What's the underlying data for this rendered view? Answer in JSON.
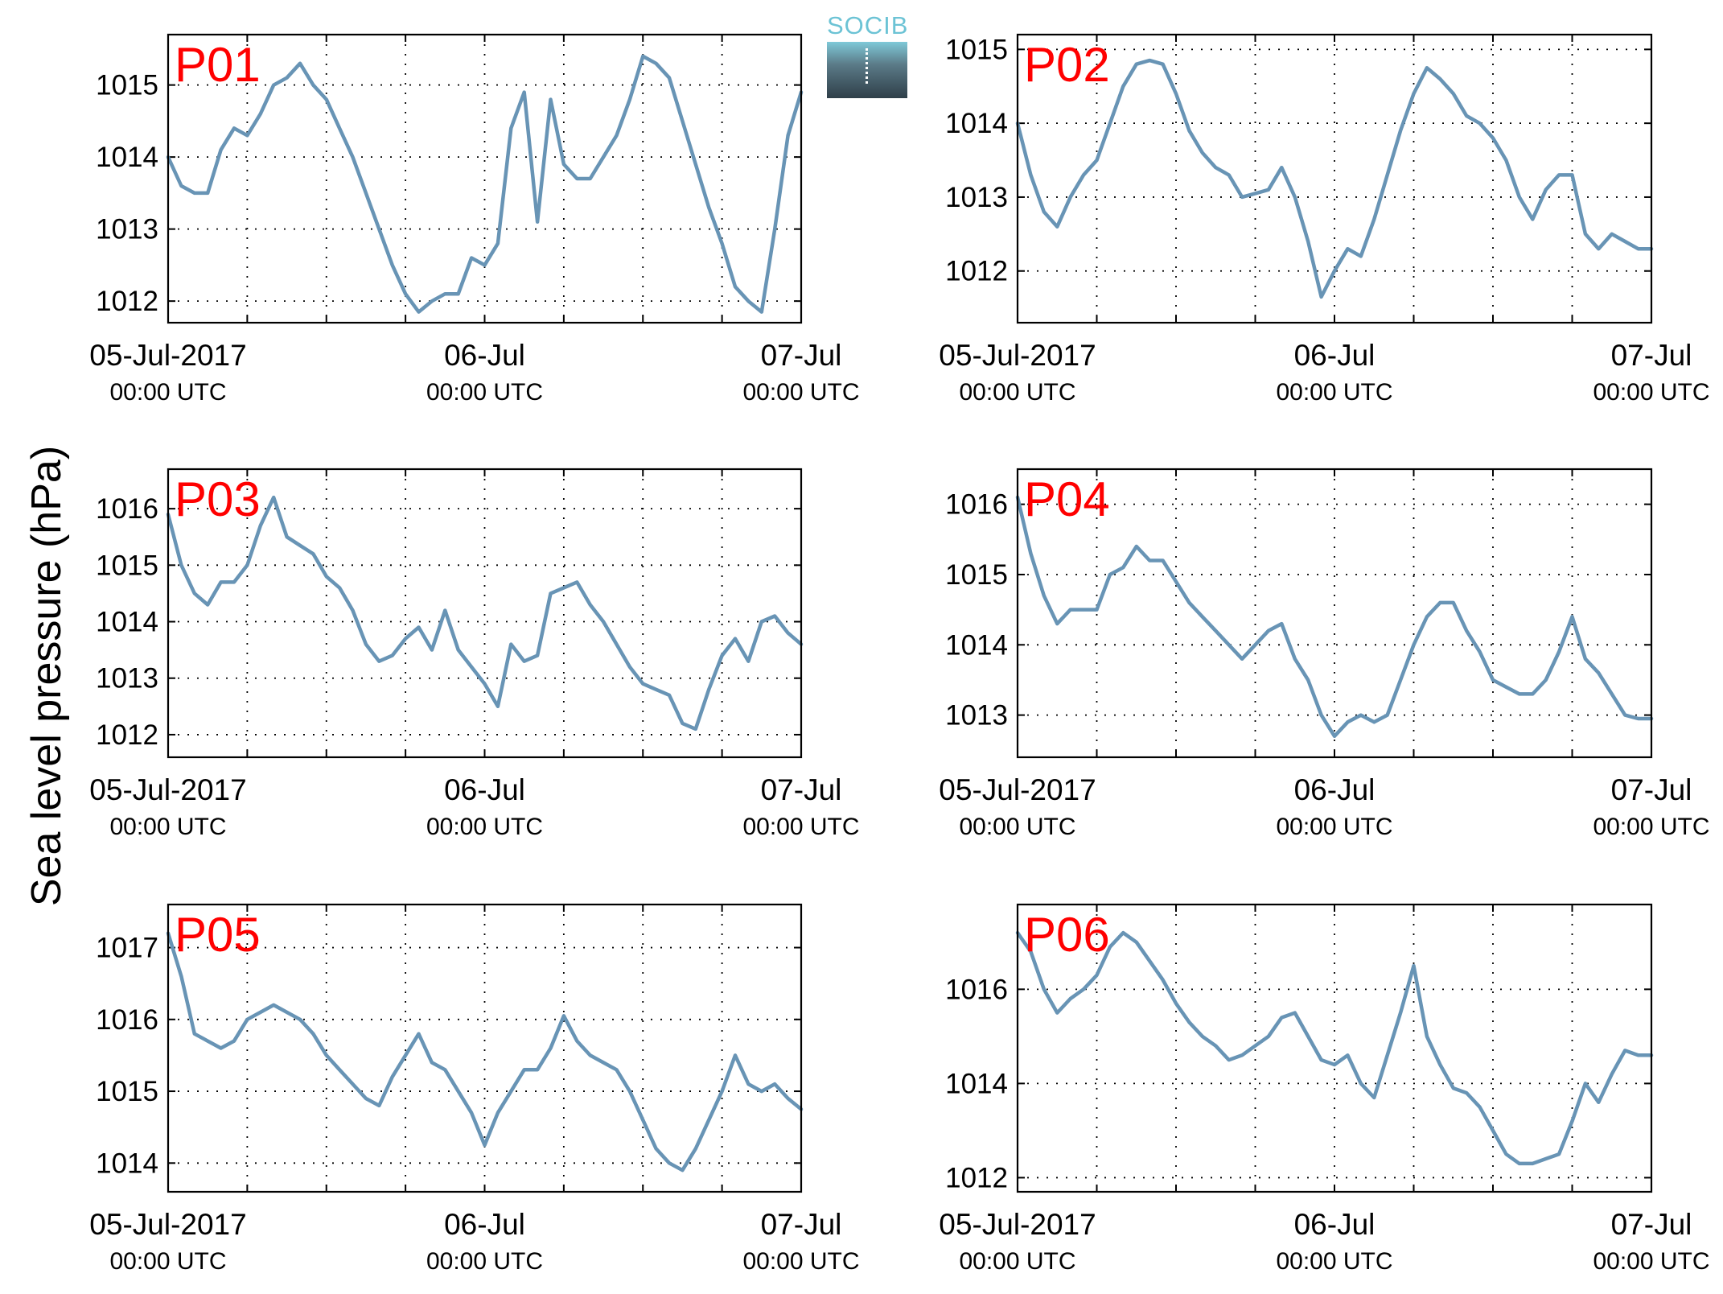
{
  "figure": {
    "ylabel": "Sea level pressure (hPa)",
    "logo_text": "SOCIB"
  },
  "colors": {
    "line": "#6894b5",
    "panel_label": "#ff0000",
    "grid": "#000000",
    "axis": "#000000"
  },
  "chart_data": [
    {
      "type": "line",
      "panel_label": "P01",
      "x_range": [
        "2017-07-05 00:00",
        "2017-07-07 00:00"
      ],
      "x_ticks": [
        {
          "date": "05-Jul-2017",
          "time": "00:00 UTC"
        },
        {
          "date": "06-Jul",
          "time": "00:00 UTC"
        },
        {
          "date": "07-Jul",
          "time": "00:00 UTC"
        }
      ],
      "y_ticks": [
        1012,
        1013,
        1014,
        1015
      ],
      "ylim": [
        1011.7,
        1015.7
      ],
      "grid": true,
      "series": [
        {
          "x_hours": [
            0,
            1,
            2,
            3,
            4,
            5,
            6,
            7,
            8,
            9,
            10,
            11,
            12,
            13,
            14,
            15,
            16,
            17,
            18,
            19,
            20,
            21,
            22,
            23,
            24,
            25,
            26,
            27,
            28,
            29,
            30,
            31,
            32,
            33,
            34,
            35,
            36,
            37,
            38,
            39,
            40,
            41,
            42,
            43,
            44,
            45,
            46,
            47,
            48
          ],
          "values": [
            1014.0,
            1013.6,
            1013.5,
            1013.5,
            1014.1,
            1014.4,
            1014.3,
            1014.6,
            1015.0,
            1015.1,
            1015.3,
            1015.0,
            1014.8,
            1014.4,
            1014.0,
            1013.5,
            1013.0,
            1012.5,
            1012.1,
            1011.85,
            1012.0,
            1012.1,
            1012.1,
            1012.6,
            1012.5,
            1012.8,
            1014.4,
            1014.9,
            1013.1,
            1014.8,
            1013.9,
            1013.7,
            1013.7,
            1014.0,
            1014.3,
            1014.8,
            1015.4,
            1015.3,
            1015.1,
            1014.5,
            1013.9,
            1013.3,
            1012.8,
            1012.2,
            1012.0,
            1011.85,
            1013.0,
            1014.3,
            1014.9
          ]
        }
      ]
    },
    {
      "type": "line",
      "panel_label": "P02",
      "x_range": [
        "2017-07-05 00:00",
        "2017-07-07 00:00"
      ],
      "x_ticks": [
        {
          "date": "05-Jul-2017",
          "time": "00:00 UTC"
        },
        {
          "date": "06-Jul",
          "time": "00:00 UTC"
        },
        {
          "date": "07-Jul",
          "time": "00:00 UTC"
        }
      ],
      "y_ticks": [
        1012,
        1013,
        1014,
        1015
      ],
      "ylim": [
        1011.3,
        1015.2
      ],
      "grid": true,
      "series": [
        {
          "x_hours": [
            0,
            1,
            2,
            3,
            4,
            5,
            6,
            7,
            8,
            9,
            10,
            11,
            12,
            13,
            14,
            15,
            16,
            17,
            18,
            19,
            20,
            21,
            22,
            23,
            24,
            25,
            26,
            27,
            28,
            29,
            30,
            31,
            32,
            33,
            34,
            35,
            36,
            37,
            38,
            39,
            40,
            41,
            42,
            43,
            44,
            45,
            46,
            47,
            48
          ],
          "values": [
            1014.0,
            1013.3,
            1012.8,
            1012.6,
            1013.0,
            1013.3,
            1013.5,
            1014.0,
            1014.5,
            1014.8,
            1014.85,
            1014.8,
            1014.4,
            1013.9,
            1013.6,
            1013.4,
            1013.3,
            1013.0,
            1013.05,
            1013.1,
            1013.4,
            1013.0,
            1012.4,
            1011.65,
            1012.0,
            1012.3,
            1012.2,
            1012.7,
            1013.3,
            1013.9,
            1014.4,
            1014.75,
            1014.6,
            1014.4,
            1014.1,
            1014.0,
            1013.8,
            1013.5,
            1013.0,
            1012.7,
            1013.1,
            1013.3,
            1013.3,
            1012.5,
            1012.3,
            1012.5,
            1012.4,
            1012.3,
            1012.3
          ]
        }
      ]
    },
    {
      "type": "line",
      "panel_label": "P03",
      "x_range": [
        "2017-07-05 00:00",
        "2017-07-07 00:00"
      ],
      "x_ticks": [
        {
          "date": "05-Jul-2017",
          "time": "00:00 UTC"
        },
        {
          "date": "06-Jul",
          "time": "00:00 UTC"
        },
        {
          "date": "07-Jul",
          "time": "00:00 UTC"
        }
      ],
      "y_ticks": [
        1012,
        1013,
        1014,
        1015,
        1016
      ],
      "ylim": [
        1011.6,
        1016.7
      ],
      "grid": true,
      "series": [
        {
          "x_hours": [
            0,
            1,
            2,
            3,
            4,
            5,
            6,
            7,
            8,
            9,
            10,
            11,
            12,
            13,
            14,
            15,
            16,
            17,
            18,
            19,
            20,
            21,
            22,
            23,
            24,
            25,
            26,
            27,
            28,
            29,
            30,
            31,
            32,
            33,
            34,
            35,
            36,
            37,
            38,
            39,
            40,
            41,
            42,
            43,
            44,
            45,
            46,
            47,
            48
          ],
          "values": [
            1015.9,
            1015.0,
            1014.5,
            1014.3,
            1014.7,
            1014.7,
            1015.0,
            1015.7,
            1016.2,
            1015.5,
            1015.35,
            1015.2,
            1014.8,
            1014.6,
            1014.2,
            1013.6,
            1013.3,
            1013.4,
            1013.7,
            1013.9,
            1013.5,
            1014.2,
            1013.5,
            1013.2,
            1012.9,
            1012.5,
            1013.6,
            1013.3,
            1013.4,
            1014.5,
            1014.6,
            1014.7,
            1014.3,
            1014.0,
            1013.6,
            1013.2,
            1012.9,
            1012.8,
            1012.7,
            1012.2,
            1012.1,
            1012.8,
            1013.4,
            1013.7,
            1013.3,
            1014.0,
            1014.1,
            1013.8,
            1013.6
          ]
        }
      ]
    },
    {
      "type": "line",
      "panel_label": "P04",
      "x_range": [
        "2017-07-05 00:00",
        "2017-07-07 00:00"
      ],
      "x_ticks": [
        {
          "date": "05-Jul-2017",
          "time": "00:00 UTC"
        },
        {
          "date": "06-Jul",
          "time": "00:00 UTC"
        },
        {
          "date": "07-Jul",
          "time": "00:00 UTC"
        }
      ],
      "y_ticks": [
        1013,
        1014,
        1015,
        1016
      ],
      "ylim": [
        1012.4,
        1016.5
      ],
      "grid": true,
      "series": [
        {
          "x_hours": [
            0,
            1,
            2,
            3,
            4,
            5,
            6,
            7,
            8,
            9,
            10,
            11,
            12,
            13,
            14,
            15,
            16,
            17,
            18,
            19,
            20,
            21,
            22,
            23,
            24,
            25,
            26,
            27,
            28,
            29,
            30,
            31,
            32,
            33,
            34,
            35,
            36,
            37,
            38,
            39,
            40,
            41,
            42,
            43,
            44,
            45,
            46,
            47,
            48
          ],
          "values": [
            1016.1,
            1015.3,
            1014.7,
            1014.3,
            1014.5,
            1014.5,
            1014.5,
            1015.0,
            1015.1,
            1015.4,
            1015.2,
            1015.2,
            1014.9,
            1014.6,
            1014.4,
            1014.2,
            1014.0,
            1013.8,
            1014.0,
            1014.2,
            1014.3,
            1013.8,
            1013.5,
            1013.0,
            1012.7,
            1012.9,
            1013.0,
            1012.9,
            1013.0,
            1013.5,
            1014.0,
            1014.4,
            1014.6,
            1014.6,
            1014.2,
            1013.9,
            1013.5,
            1013.4,
            1013.3,
            1013.3,
            1013.5,
            1013.9,
            1014.4,
            1013.8,
            1013.6,
            1013.3,
            1013.0,
            1012.95,
            1012.95
          ]
        }
      ]
    },
    {
      "type": "line",
      "panel_label": "P05",
      "x_range": [
        "2017-07-05 00:00",
        "2017-07-07 00:00"
      ],
      "x_ticks": [
        {
          "date": "05-Jul-2017",
          "time": "00:00 UTC"
        },
        {
          "date": "06-Jul",
          "time": "00:00 UTC"
        },
        {
          "date": "07-Jul",
          "time": "00:00 UTC"
        }
      ],
      "y_ticks": [
        1014,
        1015,
        1016,
        1017
      ],
      "ylim": [
        1013.6,
        1017.6
      ],
      "grid": true,
      "series": [
        {
          "x_hours": [
            0,
            1,
            2,
            3,
            4,
            5,
            6,
            7,
            8,
            9,
            10,
            11,
            12,
            13,
            14,
            15,
            16,
            17,
            18,
            19,
            20,
            21,
            22,
            23,
            24,
            25,
            26,
            27,
            28,
            29,
            30,
            31,
            32,
            33,
            34,
            35,
            36,
            37,
            38,
            39,
            40,
            41,
            42,
            43,
            44,
            45,
            46,
            47,
            48
          ],
          "values": [
            1017.2,
            1016.6,
            1015.8,
            1015.7,
            1015.6,
            1015.7,
            1016.0,
            1016.1,
            1016.2,
            1016.1,
            1016.0,
            1015.8,
            1015.5,
            1015.3,
            1015.1,
            1014.9,
            1014.8,
            1015.2,
            1015.5,
            1015.8,
            1015.4,
            1015.3,
            1015.0,
            1014.7,
            1014.25,
            1014.7,
            1015.0,
            1015.3,
            1015.3,
            1015.6,
            1016.05,
            1015.7,
            1015.5,
            1015.4,
            1015.3,
            1015.0,
            1014.6,
            1014.2,
            1014.0,
            1013.9,
            1014.2,
            1014.6,
            1015.0,
            1015.5,
            1015.1,
            1015.0,
            1015.1,
            1014.9,
            1014.75
          ]
        }
      ]
    },
    {
      "type": "line",
      "panel_label": "P06",
      "x_range": [
        "2017-07-05 00:00",
        "2017-07-07 00:00"
      ],
      "x_ticks": [
        {
          "date": "05-Jul-2017",
          "time": "00:00 UTC"
        },
        {
          "date": "06-Jul",
          "time": "00:00 UTC"
        },
        {
          "date": "07-Jul",
          "time": "00:00 UTC"
        }
      ],
      "y_ticks": [
        1012,
        1014,
        1016
      ],
      "ylim": [
        1011.7,
        1017.8
      ],
      "grid": true,
      "series": [
        {
          "x_hours": [
            0,
            1,
            2,
            3,
            4,
            5,
            6,
            7,
            8,
            9,
            10,
            11,
            12,
            13,
            14,
            15,
            16,
            17,
            18,
            19,
            20,
            21,
            22,
            23,
            24,
            25,
            26,
            27,
            28,
            29,
            30,
            31,
            32,
            33,
            34,
            35,
            36,
            37,
            38,
            39,
            40,
            41,
            42,
            43,
            44,
            45,
            46,
            47,
            48
          ],
          "values": [
            1017.2,
            1016.8,
            1016.0,
            1015.5,
            1015.8,
            1016.0,
            1016.3,
            1016.9,
            1017.2,
            1017.0,
            1016.6,
            1016.2,
            1015.7,
            1015.3,
            1015.0,
            1014.8,
            1014.5,
            1014.6,
            1014.8,
            1015.0,
            1015.4,
            1015.5,
            1015.0,
            1014.5,
            1014.4,
            1014.6,
            1014.0,
            1013.7,
            1014.6,
            1015.5,
            1016.5,
            1015.0,
            1014.4,
            1013.9,
            1013.8,
            1013.5,
            1013.0,
            1012.5,
            1012.3,
            1012.3,
            1012.4,
            1012.5,
            1013.2,
            1014.0,
            1013.6,
            1014.2,
            1014.7,
            1014.6,
            1014.6
          ]
        }
      ]
    }
  ]
}
